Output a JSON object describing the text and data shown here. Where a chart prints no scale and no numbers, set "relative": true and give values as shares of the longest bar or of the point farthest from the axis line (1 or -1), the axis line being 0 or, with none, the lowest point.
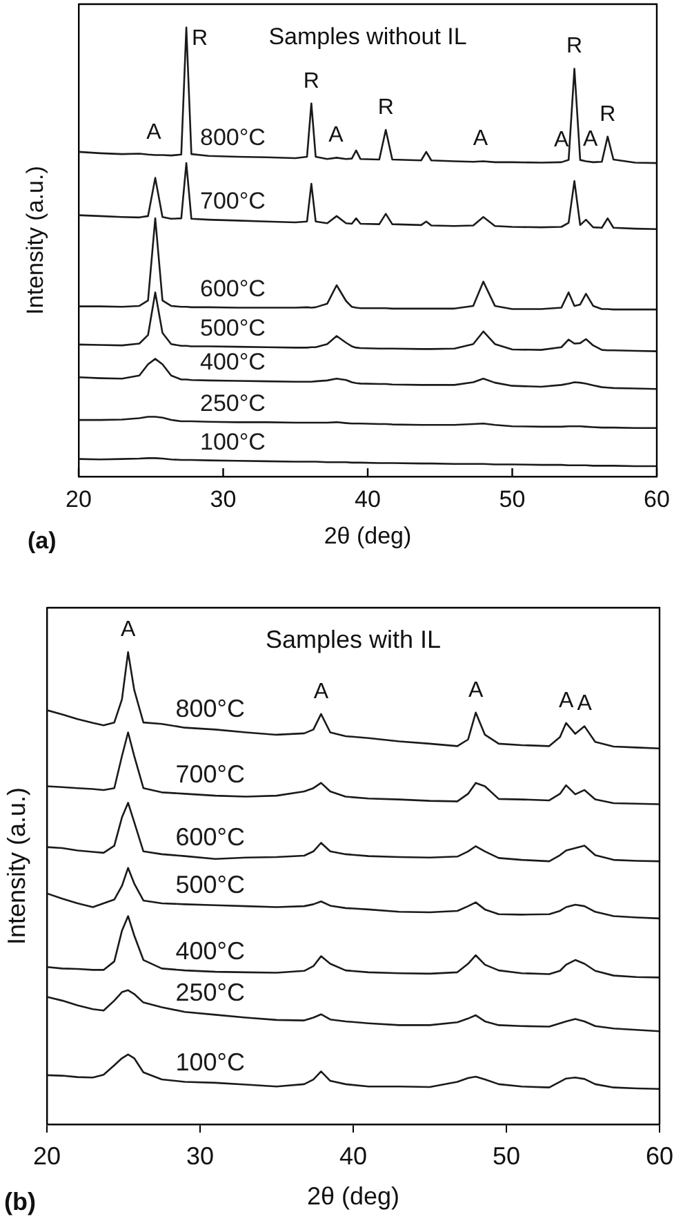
{
  "chart_data": [
    {
      "type": "line",
      "title": "Samples without IL",
      "xlabel": "2θ (deg)",
      "ylabel": "Intensity (a.u.)",
      "relative": true,
      "tick_labels": "x",
      "grid": false,
      "legend": false,
      "marker": "none",
      "xlim": [
        20,
        60
      ],
      "xticks": [
        20,
        30,
        40,
        50,
        60
      ],
      "annotations": [
        {
          "text": "A",
          "x": 25.2,
          "y": 0.716
        },
        {
          "text": "R",
          "x": 27.45,
          "y": 1.0
        },
        {
          "text": "R",
          "x": 36.1,
          "y": 0.831
        },
        {
          "text": "A",
          "x": 37.8,
          "y": 0.71
        },
        {
          "text": "R",
          "x": 41.25,
          "y": 0.772
        },
        {
          "text": "A",
          "x": 47.8,
          "y": 0.702
        },
        {
          "text": "A",
          "x": 53.4,
          "y": 0.7
        },
        {
          "text": "R",
          "x": 54.3,
          "y": 0.908
        },
        {
          "text": "A",
          "x": 55.4,
          "y": 0.701
        },
        {
          "text": "R",
          "x": 56.6,
          "y": 0.757
        },
        "(a)"
      ],
      "x": [
        20,
        21.5,
        23,
        24.2,
        24.8,
        25.3,
        25.8,
        26.4,
        27.1,
        27.45,
        27.8,
        29,
        31,
        33,
        35,
        35.8,
        36.1,
        36.4,
        37.2,
        37.85,
        38.5,
        38.9,
        39.2,
        39.5,
        40.8,
        41.25,
        41.7,
        43.7,
        44.05,
        44.4,
        46,
        47.3,
        48.0,
        48.8,
        50,
        52,
        53.4,
        53.9,
        54.3,
        54.7,
        55.1,
        55.6,
        56.2,
        56.6,
        57,
        58.5,
        60
      ],
      "series": [
        {
          "name": "800°C",
          "color": "#1a1a1a",
          "values": [
            0.723,
            0.72,
            0.718,
            0.719,
            0.717,
            0.716,
            0.716,
            0.715,
            0.717,
            1.0,
            0.718,
            0.714,
            0.712,
            0.711,
            0.709,
            0.712,
            0.831,
            0.712,
            0.707,
            0.71,
            0.707,
            0.708,
            0.726,
            0.707,
            0.706,
            0.772,
            0.706,
            0.704,
            0.723,
            0.704,
            0.702,
            0.701,
            0.702,
            0.7,
            0.7,
            0.699,
            0.7,
            0.705,
            0.908,
            0.705,
            0.702,
            0.7,
            0.701,
            0.757,
            0.706,
            0.699,
            0.698
          ]
        },
        {
          "name": "700°C",
          "color": "#1a1a1a",
          "values": [
            0.582,
            0.58,
            0.578,
            0.577,
            0.58,
            0.665,
            0.578,
            0.574,
            0.575,
            0.698,
            0.574,
            0.572,
            0.57,
            0.568,
            0.566,
            0.568,
            0.652,
            0.568,
            0.564,
            0.58,
            0.564,
            0.563,
            0.575,
            0.563,
            0.562,
            0.585,
            0.562,
            0.56,
            0.568,
            0.559,
            0.558,
            0.559,
            0.578,
            0.558,
            0.556,
            0.555,
            0.556,
            0.565,
            0.658,
            0.56,
            0.572,
            0.555,
            0.554,
            0.575,
            0.554,
            0.552,
            0.551
          ]
        },
        {
          "name": "600°C",
          "color": "#1a1a1a",
          "values": [
            0.379,
            0.379,
            0.378,
            0.38,
            0.392,
            0.575,
            0.392,
            0.38,
            0.378,
            0.378,
            0.377,
            0.377,
            0.376,
            0.376,
            0.376,
            0.377,
            0.376,
            0.377,
            0.385,
            0.426,
            0.391,
            0.378,
            0.376,
            0.375,
            0.375,
            0.375,
            0.374,
            0.374,
            0.374,
            0.374,
            0.374,
            0.38,
            0.434,
            0.38,
            0.373,
            0.373,
            0.376,
            0.41,
            0.38,
            0.383,
            0.407,
            0.38,
            0.373,
            0.373,
            0.372,
            0.372,
            0.372
          ]
        },
        {
          "name": "500°C",
          "color": "#1a1a1a",
          "values": [
            0.294,
            0.293,
            0.292,
            0.296,
            0.315,
            0.41,
            0.32,
            0.295,
            0.291,
            0.291,
            0.29,
            0.29,
            0.289,
            0.288,
            0.287,
            0.287,
            0.288,
            0.288,
            0.295,
            0.313,
            0.298,
            0.29,
            0.287,
            0.286,
            0.285,
            0.285,
            0.285,
            0.284,
            0.284,
            0.284,
            0.285,
            0.295,
            0.323,
            0.295,
            0.283,
            0.282,
            0.288,
            0.305,
            0.296,
            0.297,
            0.306,
            0.292,
            0.282,
            0.281,
            0.281,
            0.28,
            0.279
          ]
        },
        {
          "name": "400°C",
          "color": "#1a1a1a",
          "values": [
            0.221,
            0.219,
            0.218,
            0.225,
            0.25,
            0.262,
            0.25,
            0.225,
            0.216,
            0.216,
            0.215,
            0.214,
            0.213,
            0.212,
            0.211,
            0.211,
            0.211,
            0.212,
            0.214,
            0.218,
            0.215,
            0.21,
            0.208,
            0.207,
            0.206,
            0.206,
            0.205,
            0.204,
            0.204,
            0.204,
            0.204,
            0.21,
            0.218,
            0.209,
            0.202,
            0.2,
            0.204,
            0.207,
            0.21,
            0.209,
            0.207,
            0.203,
            0.199,
            0.198,
            0.197,
            0.196,
            0.195
          ]
        },
        {
          "name": "250°C",
          "color": "#1a1a1a",
          "values": [
            0.126,
            0.126,
            0.127,
            0.13,
            0.133,
            0.133,
            0.131,
            0.126,
            0.123,
            0.123,
            0.123,
            0.122,
            0.121,
            0.121,
            0.12,
            0.12,
            0.12,
            0.12,
            0.12,
            0.121,
            0.119,
            0.118,
            0.118,
            0.118,
            0.117,
            0.117,
            0.116,
            0.115,
            0.115,
            0.115,
            0.115,
            0.117,
            0.118,
            0.115,
            0.112,
            0.111,
            0.111,
            0.112,
            0.112,
            0.112,
            0.111,
            0.11,
            0.109,
            0.109,
            0.109,
            0.108,
            0.108
          ]
        },
        {
          "name": "100°C",
          "color": "#1a1a1a",
          "values": [
            0.039,
            0.038,
            0.039,
            0.04,
            0.041,
            0.041,
            0.04,
            0.038,
            0.037,
            0.037,
            0.037,
            0.036,
            0.035,
            0.034,
            0.033,
            0.033,
            0.033,
            0.033,
            0.032,
            0.032,
            0.032,
            0.031,
            0.031,
            0.031,
            0.03,
            0.03,
            0.03,
            0.029,
            0.029,
            0.029,
            0.028,
            0.028,
            0.028,
            0.027,
            0.027,
            0.026,
            0.026,
            0.025,
            0.025,
            0.025,
            0.025,
            0.024,
            0.024,
            0.024,
            0.024,
            0.023,
            0.023
          ]
        }
      ]
    },
    {
      "type": "line",
      "title": "Samples with IL",
      "xlabel": "2θ (deg)",
      "ylabel": "Intensity (a.u.)",
      "relative": true,
      "tick_labels": "x",
      "grid": false,
      "legend": false,
      "marker": "none",
      "xlim": [
        20,
        60
      ],
      "xticks": [
        20,
        30,
        40,
        50,
        60
      ],
      "annotations": [
        {
          "text": "A",
          "x": 25.3,
          "y": 1.0
        },
        {
          "text": "A",
          "x": 37.9,
          "y": 0.869
        },
        {
          "text": "A",
          "x": 48.0,
          "y": 0.872
        },
        {
          "text": "A",
          "x": 53.9,
          "y": 0.85
        },
        {
          "text": "A",
          "x": 55.1,
          "y": 0.843
        },
        "(b)"
      ],
      "x": [
        20,
        21,
        22,
        23,
        23.7,
        24.4,
        24.9,
        25.3,
        25.7,
        26.3,
        27.5,
        29,
        31,
        33,
        35,
        36.8,
        37.4,
        37.9,
        38.5,
        39.5,
        41,
        43,
        45,
        46.8,
        47.5,
        48.0,
        48.6,
        49.5,
        51,
        52.8,
        53.5,
        53.9,
        54.5,
        55.1,
        55.8,
        57,
        58.5,
        60
      ],
      "series": [
        {
          "name": "800°C",
          "color": "#1a1a1a",
          "values": [
            0.877,
            0.868,
            0.858,
            0.85,
            0.845,
            0.851,
            0.9,
            1.0,
            0.92,
            0.851,
            0.848,
            0.84,
            0.836,
            0.83,
            0.825,
            0.828,
            0.836,
            0.869,
            0.83,
            0.822,
            0.818,
            0.811,
            0.806,
            0.801,
            0.815,
            0.872,
            0.825,
            0.806,
            0.803,
            0.801,
            0.82,
            0.85,
            0.827,
            0.843,
            0.81,
            0.8,
            0.798,
            0.796
          ]
        },
        {
          "name": "700°C",
          "color": "#1a1a1a",
          "values": [
            0.716,
            0.714,
            0.712,
            0.71,
            0.708,
            0.712,
            0.78,
            0.83,
            0.78,
            0.712,
            0.703,
            0.7,
            0.696,
            0.694,
            0.696,
            0.705,
            0.712,
            0.723,
            0.705,
            0.694,
            0.69,
            0.688,
            0.685,
            0.684,
            0.7,
            0.723,
            0.716,
            0.689,
            0.688,
            0.686,
            0.7,
            0.718,
            0.699,
            0.708,
            0.688,
            0.68,
            0.679,
            0.678
          ]
        },
        {
          "name": "600°C",
          "color": "#1a1a1a",
          "values": [
            0.587,
            0.585,
            0.58,
            0.577,
            0.575,
            0.59,
            0.65,
            0.681,
            0.64,
            0.578,
            0.572,
            0.568,
            0.562,
            0.565,
            0.566,
            0.569,
            0.578,
            0.596,
            0.578,
            0.572,
            0.568,
            0.566,
            0.565,
            0.567,
            0.578,
            0.589,
            0.578,
            0.564,
            0.56,
            0.557,
            0.57,
            0.58,
            0.585,
            0.59,
            0.57,
            0.56,
            0.558,
            0.557
          ]
        },
        {
          "name": "500°C",
          "color": "#1a1a1a",
          "values": [
            0.489,
            0.478,
            0.468,
            0.46,
            0.468,
            0.476,
            0.505,
            0.543,
            0.51,
            0.474,
            0.468,
            0.466,
            0.464,
            0.462,
            0.46,
            0.462,
            0.466,
            0.472,
            0.463,
            0.458,
            0.455,
            0.45,
            0.449,
            0.452,
            0.462,
            0.47,
            0.455,
            0.445,
            0.444,
            0.445,
            0.452,
            0.46,
            0.465,
            0.462,
            0.45,
            0.441,
            0.438,
            0.436
          ]
        },
        {
          "name": "400°C",
          "color": "#1a1a1a",
          "values": [
            0.333,
            0.33,
            0.329,
            0.327,
            0.327,
            0.345,
            0.41,
            0.441,
            0.4,
            0.348,
            0.33,
            0.326,
            0.323,
            0.322,
            0.321,
            0.325,
            0.335,
            0.356,
            0.34,
            0.326,
            0.322,
            0.32,
            0.319,
            0.322,
            0.34,
            0.358,
            0.338,
            0.326,
            0.32,
            0.318,
            0.325,
            0.338,
            0.348,
            0.34,
            0.325,
            0.315,
            0.312,
            0.311
          ]
        },
        {
          "name": "250°C",
          "color": "#1a1a1a",
          "values": [
            0.27,
            0.262,
            0.252,
            0.244,
            0.241,
            0.262,
            0.28,
            0.284,
            0.276,
            0.258,
            0.248,
            0.238,
            0.232,
            0.226,
            0.221,
            0.22,
            0.226,
            0.233,
            0.222,
            0.218,
            0.214,
            0.21,
            0.21,
            0.216,
            0.224,
            0.231,
            0.218,
            0.21,
            0.208,
            0.207,
            0.214,
            0.218,
            0.223,
            0.218,
            0.208,
            0.203,
            0.2,
            0.197
          ]
        },
        {
          "name": "100°C",
          "color": "#1a1a1a",
          "values": [
            0.104,
            0.103,
            0.1,
            0.099,
            0.105,
            0.125,
            0.14,
            0.148,
            0.14,
            0.11,
            0.095,
            0.09,
            0.088,
            0.084,
            0.08,
            0.085,
            0.095,
            0.112,
            0.092,
            0.085,
            0.08,
            0.08,
            0.079,
            0.09,
            0.098,
            0.101,
            0.095,
            0.085,
            0.08,
            0.078,
            0.09,
            0.097,
            0.099,
            0.096,
            0.085,
            0.078,
            0.076,
            0.075
          ]
        }
      ]
    }
  ]
}
